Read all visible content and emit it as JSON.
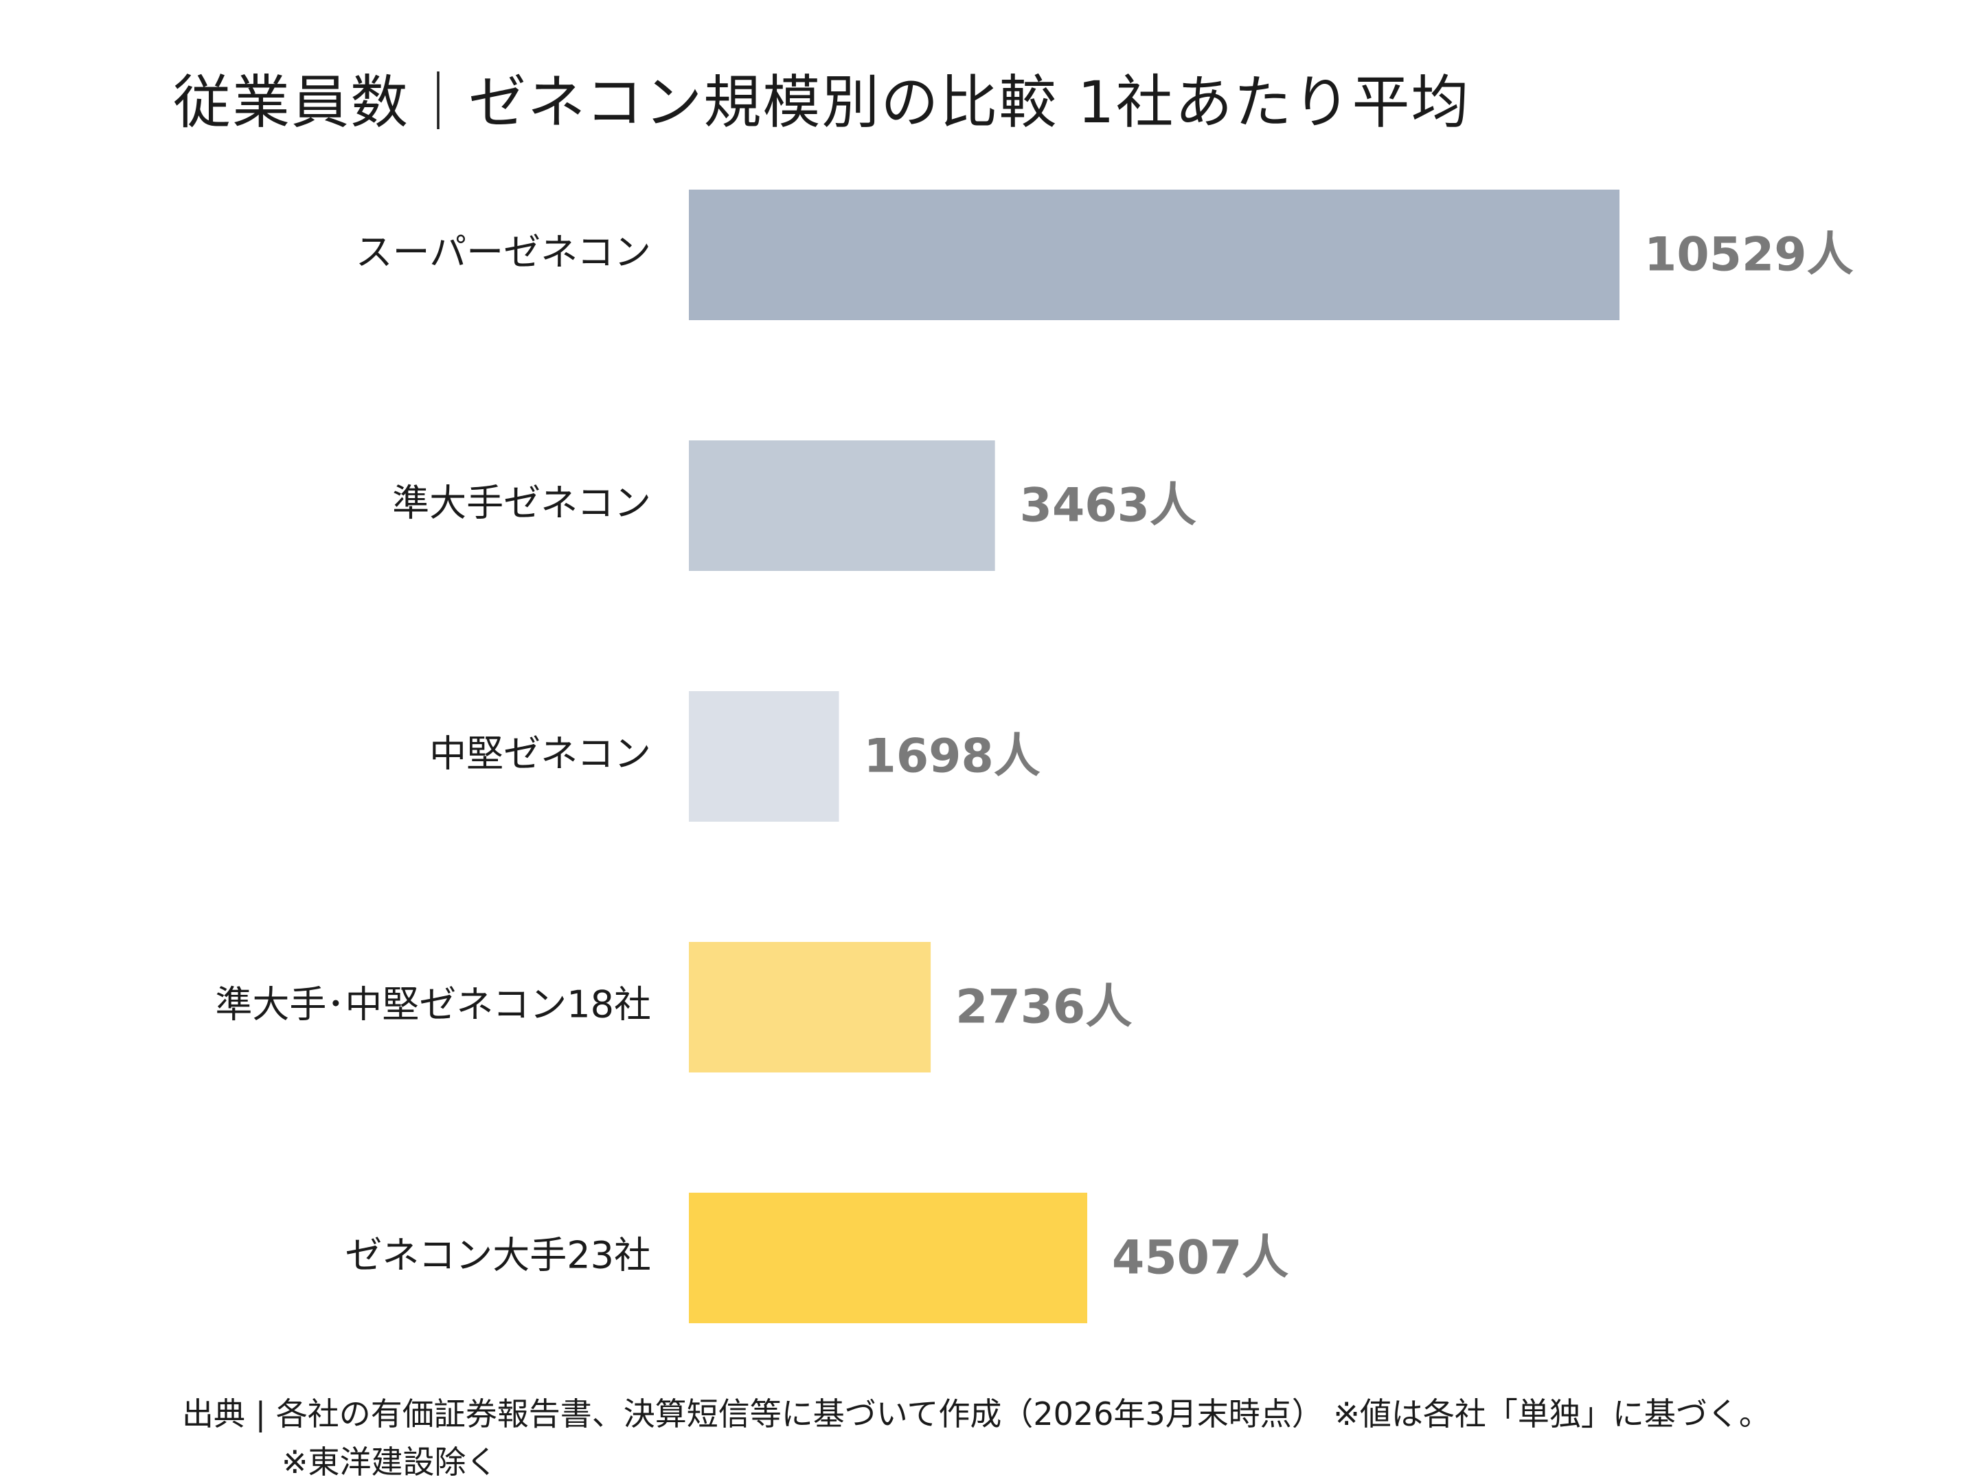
{
  "chart_data": {
    "type": "bar",
    "orientation": "horizontal",
    "title": "従業員数｜ゼネコン規模別の比較 1社あたり平均",
    "categories": [
      "スーパーゼネコン",
      "準大手ゼネコン",
      "中堅ゼネコン",
      "準大手･中堅ゼネコン18社",
      "ゼネコン大手23社"
    ],
    "values": [
      10529,
      3463,
      1698,
      2736,
      4507
    ],
    "value_labels": [
      "10529人",
      "3463人",
      "1698人",
      "2736人",
      "4507人"
    ],
    "colors": [
      "#a8b4c5",
      "#c1cad6",
      "#dbe0e8",
      "#fcdd82",
      "#fdd34d"
    ],
    "xlim": [
      0,
      10529
    ],
    "grid": false,
    "legend": "none"
  },
  "source": {
    "line1": "出典 | 各社の有価証券報告書、決算短信等に基づいて作成（2026年3月末時点） ※値は各社「単独」に基づく。",
    "line2": "※東洋建設除く"
  }
}
